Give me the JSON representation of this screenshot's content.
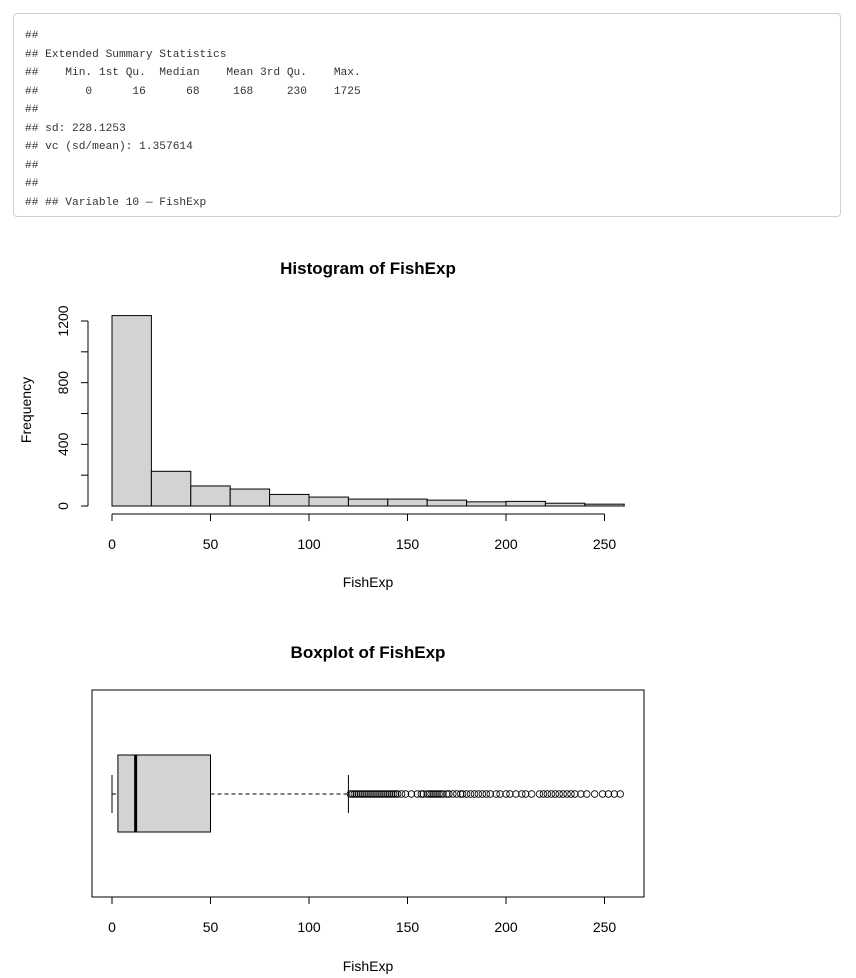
{
  "console": {
    "lines": [
      "##",
      "## Extended Summary Statistics",
      "##    Min. 1st Qu.  Median    Mean 3rd Qu.    Max. ",
      "##       0      16      68     168     230    1725 ",
      "##",
      "## sd: 228.1253",
      "## vc (sd/mean): 1.357614",
      "##",
      "##",
      "## ## Variable 10 — FishExp"
    ]
  },
  "chart_data": [
    {
      "type": "bar",
      "subtype": "histogram",
      "title": "Histogram of FishExp",
      "xlabel": "FishExp",
      "ylabel": "Frequency",
      "bin_edges": [
        0,
        20,
        40,
        60,
        80,
        100,
        120,
        140,
        160,
        180,
        200,
        220,
        240,
        260
      ],
      "values": [
        1235,
        225,
        130,
        110,
        75,
        58,
        45,
        45,
        38,
        27,
        30,
        18,
        12
      ],
      "xticks": [
        0,
        50,
        100,
        150,
        200,
        250
      ],
      "yticks": [
        0,
        400,
        800,
        1200
      ],
      "xlim": [
        0,
        260
      ],
      "ylim": [
        0,
        1200
      ],
      "bar_color": "#d3d3d3"
    },
    {
      "type": "boxplot",
      "title": "Boxplot of FishExp",
      "xlabel": "FishExp",
      "orientation": "horizontal",
      "whisker_low": 0,
      "q1": 3,
      "median": 12,
      "q3": 50,
      "whisker_high": 120,
      "outliers": [
        121,
        122,
        123,
        124,
        125,
        126,
        127,
        128,
        129,
        130,
        131,
        132,
        133,
        134,
        135,
        136,
        137,
        138,
        139,
        140,
        141,
        142,
        143,
        144,
        145,
        147,
        149,
        152,
        155,
        157,
        158,
        160,
        161,
        162,
        163,
        164,
        165,
        166,
        167,
        168,
        170,
        171,
        173,
        175,
        177,
        178,
        180,
        182,
        184,
        186,
        188,
        190,
        192,
        195,
        197,
        200,
        202,
        205,
        208,
        210,
        213,
        217,
        219,
        221,
        223,
        225,
        227,
        229,
        231,
        233,
        235,
        238,
        241,
        245,
        249,
        252,
        255,
        258
      ],
      "xticks": [
        0,
        50,
        100,
        150,
        200,
        250
      ],
      "xlim": [
        -10,
        270
      ],
      "box_color": "#d3d3d3"
    }
  ]
}
